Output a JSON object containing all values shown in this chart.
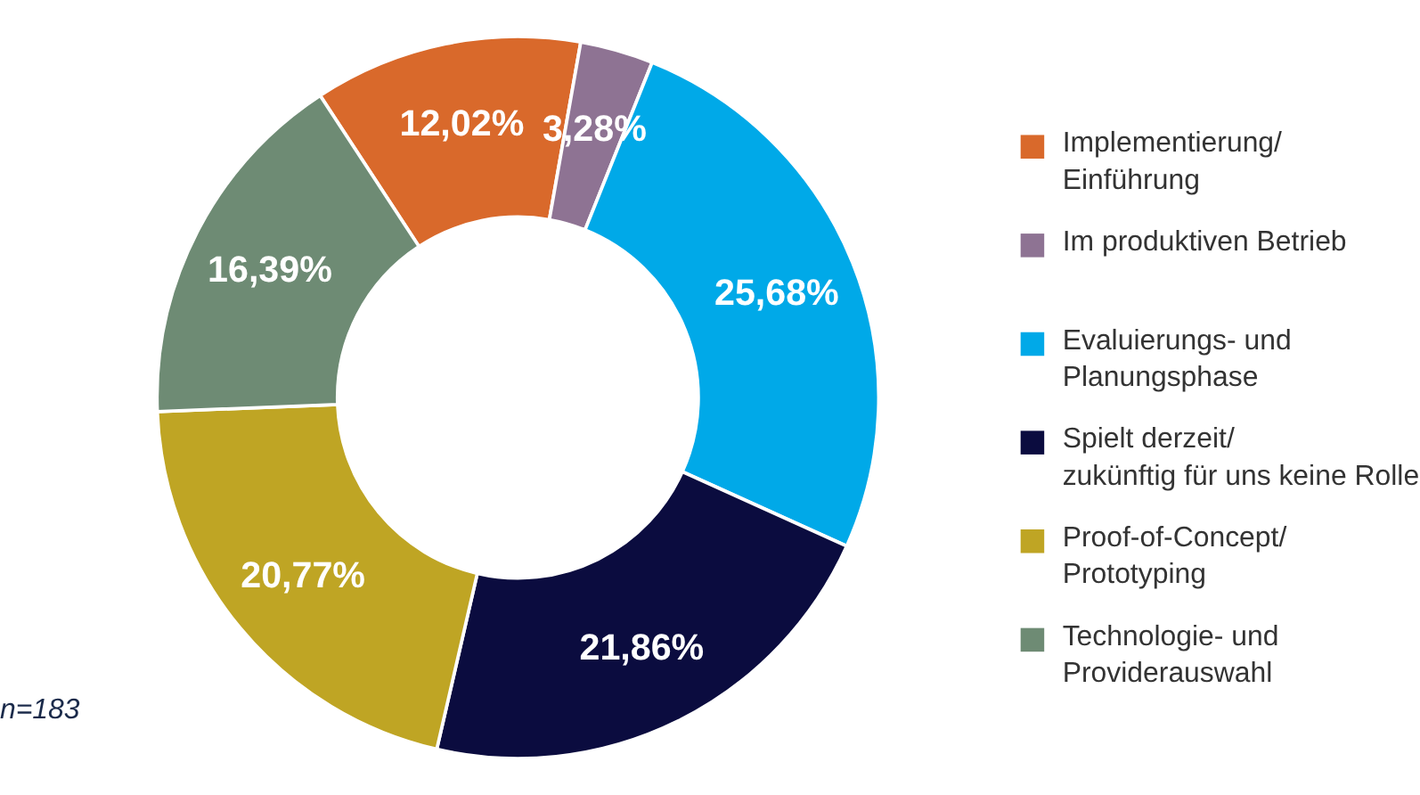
{
  "chart_data": {
    "type": "donut",
    "categories": [
      "Implementierung/Einführung",
      "Im produktiven Betrieb",
      "Evaluierungs- und Planungsphase",
      "Spielt derzeit/zukünftig für uns keine Rolle",
      "Proof-of-Concept/Prototyping",
      "Technologie- und Providerauswahl"
    ],
    "values": [
      12.02,
      3.28,
      25.68,
      21.86,
      20.77,
      16.39
    ],
    "value_labels": [
      "12,02%",
      "3,28%",
      "25,68%",
      "21,86%",
      "20,77%",
      "16,39%"
    ],
    "colors": [
      "#d9692b",
      "#8e7393",
      "#00a9e8",
      "#0b0c3f",
      "#bfa524",
      "#6e8b74"
    ],
    "legend": "right",
    "annotations": [
      "n=183"
    ]
  }
}
